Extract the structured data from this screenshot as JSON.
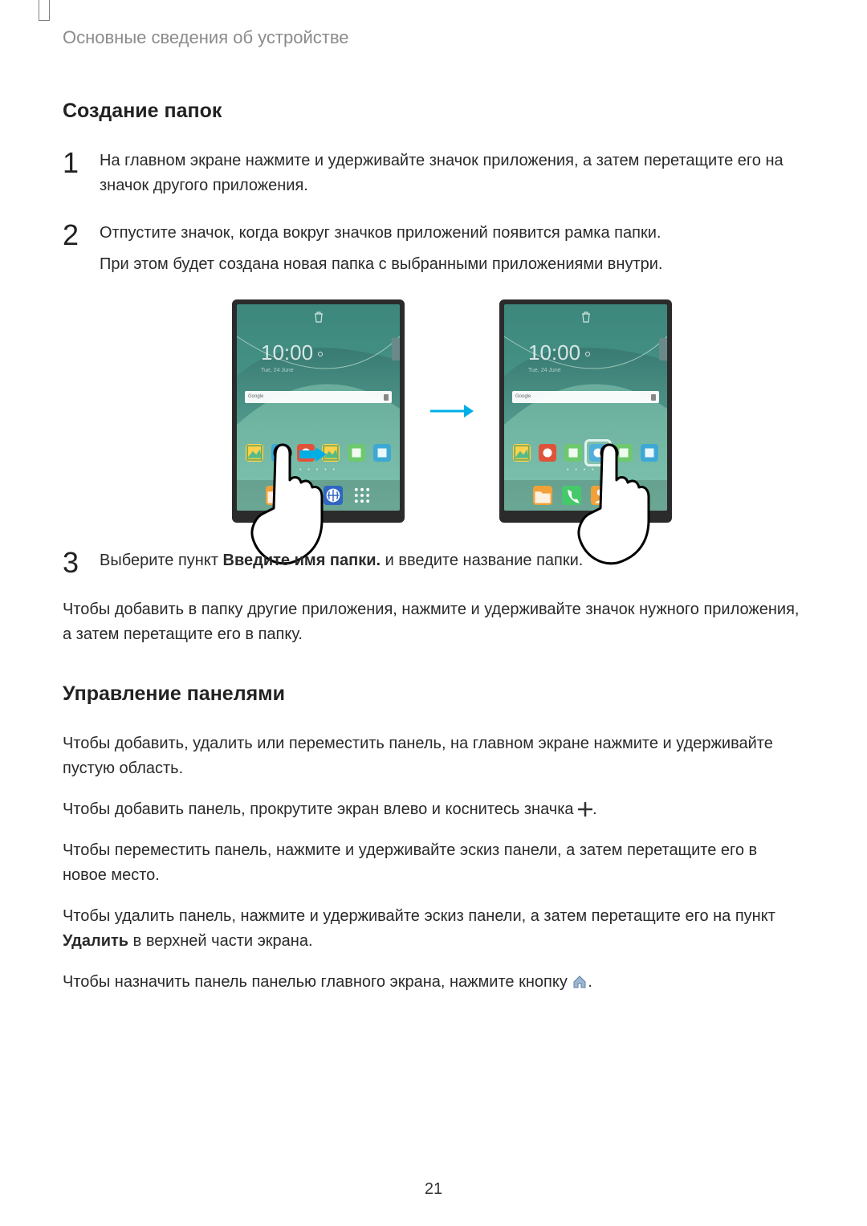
{
  "breadcrumb": "Основные сведения об устройстве",
  "heading_folders": "Создание папок",
  "steps": {
    "s1": "На главном экране нажмите и удерживайте значок приложения, а затем перетащите его на значок другого приложения.",
    "s2a": "Отпустите значок, когда вокруг значков приложений появится рамка папки.",
    "s2b": "При этом будет создана новая папка с выбранными приложениями внутри.",
    "s3_pre": "Выберите пункт ",
    "s3_bold": "Введите имя папки.",
    "s3_post": " и введите название папки."
  },
  "para_afterfolders": "Чтобы добавить в папку другие приложения, нажмите и удерживайте значок нужного приложения, а затем перетащите его в папку.",
  "heading_panels": "Управление панелями",
  "panels": {
    "p1": "Чтобы добавить, удалить или переместить панель, на главном экране нажмите и удерживайте пустую область.",
    "p2_pre": "Чтобы добавить панель, прокрутите экран влево и коснитесь значка ",
    "p2_post": ".",
    "p3": "Чтобы переместить панель, нажмите и удерживайте эскиз панели, а затем перетащите его в новое место.",
    "p4_pre": "Чтобы удалить панель, нажмите и удерживайте эскиз панели, а затем перетащите его на пункт ",
    "p4_bold": "Удалить",
    "p4_post": " в верхней части экрана.",
    "p5_pre": "Чтобы назначить панель панелью главного экрана, нажмите кнопку ",
    "p5_post": "."
  },
  "page_number": "21",
  "figure": {
    "clock": "10:00",
    "clock_sub": "Tue, 24 June",
    "search_hint": "Google",
    "page_dots": "• • • • •",
    "colors": {
      "device_body": "#2b2b2b",
      "arrow": "#00aee6",
      "bg_grad_top": "#2a6b66",
      "bg_grad_bot": "#6fb8a6",
      "wave1": "#4a9a8c",
      "wave2": "#8ed0b8"
    },
    "icons_row1_left": [
      {
        "bg": "#ffd24d",
        "shape": "image"
      },
      {
        "bg": "#3da8d6",
        "shape": "circle-white"
      },
      {
        "bg": "#e0533a",
        "shape": "circle-white"
      },
      {
        "bg": "#ffd24d",
        "shape": "image"
      },
      {
        "bg": "#6ec96e",
        "shape": "square"
      },
      {
        "bg": "#3da8d6",
        "shape": "square"
      }
    ],
    "icons_row1_right": [
      {
        "bg": "#ffd24d",
        "shape": "image"
      },
      {
        "bg": "#e0533a",
        "shape": "circle-white"
      },
      {
        "bg": "#6ec96e",
        "shape": "square"
      },
      {
        "bg": "#3da8d6",
        "shape": "circle-white"
      },
      {
        "bg": "#6ec96e",
        "shape": "square"
      },
      {
        "bg": "#3da8d6",
        "shape": "square"
      }
    ],
    "icons_dock_left": [
      {
        "bg": "#f2a038",
        "shape": "folder"
      },
      {
        "bg": "#f2a038",
        "shape": "folder"
      },
      {
        "bg": "#3066c2",
        "shape": "globe"
      },
      {
        "bg": "transparent",
        "shape": "grid"
      }
    ],
    "icons_dock_right": [
      {
        "bg": "#f2a038",
        "shape": "folder"
      },
      {
        "bg": "#45c96a",
        "shape": "phone"
      },
      {
        "bg": "#f2a038",
        "shape": "contact"
      },
      {
        "bg": "#ffffff",
        "shape": "mail"
      }
    ],
    "folder_frame_color": "#dff3ea"
  },
  "inline_plus_color": "#333333",
  "inline_home_fill": "#9fb6cf",
  "inline_home_stroke": "#5b7fa8"
}
